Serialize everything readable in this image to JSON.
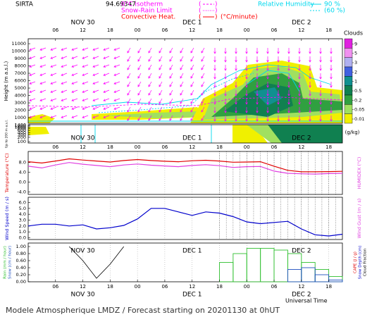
{
  "header": {
    "station": "SIRTA",
    "coordinate": "94.69347",
    "legend": [
      {
        "name": "0°C isotherm",
        "color": "#ff00ff"
      },
      {
        "name": "Snow-Rain Limit",
        "color": "#ff00ff"
      },
      {
        "name": "Convective Heat.",
        "color": "#ff0000"
      }
    ],
    "legend_unit": "(°C/minute)",
    "humidity": {
      "name": "Relative Humidity",
      "levels": [
        "90 %",
        "(60 %)"
      ],
      "color": "#00d8ee"
    }
  },
  "dates": [
    "NOV 30",
    "DEC 1",
    "DEC 2"
  ],
  "chart_data": [
    {
      "type": "contour",
      "ylabel": "Height (m a.s.l.)",
      "inset_ylabel": "Up to 200 m a.s.l.",
      "xlim": [
        0,
        69
      ],
      "xticks": [
        {
          "value": 6,
          "label": "06"
        },
        12,
        18,
        {
          "value": 24,
          "label": "00"
        },
        {
          "value": 30,
          "label": "06"
        },
        {
          "value": 36,
          "label": "12"
        },
        {
          "value": 42,
          "label": "18"
        },
        {
          "value": 48,
          "label": "00"
        },
        {
          "value": 54,
          "label": "06"
        },
        {
          "value": 60,
          "label": "12"
        },
        {
          "value": 66,
          "label": "18"
        }
      ],
      "ylim": [
        240,
        11670
      ],
      "yticks": [
        1000,
        2000,
        3000,
        4000,
        5000,
        6000,
        7000,
        8000,
        9000,
        10000,
        11000
      ],
      "inset_ylim": [
        80,
        1500
      ],
      "inset_log": true,
      "inset_yticks": [
        1400,
        1200,
        1000,
        800,
        600,
        400,
        300,
        200,
        100
      ],
      "colorbar": {
        "title": "Clouds",
        "unit": "(g/kg)",
        "levels": [
          9,
          5,
          3,
          2,
          1,
          0.5,
          0.2,
          0.05,
          0.01
        ],
        "colors": [
          "#e020e0",
          "#f090f0",
          "#b0b0f0",
          "#4060e0",
          "#109090",
          "#108050",
          "#30a040",
          "#a0e060",
          "#f0f000"
        ]
      }
    },
    {
      "type": "line",
      "xlim": [
        0,
        69
      ],
      "xticks": [
        {
          "value": 6,
          "label": "06"
        },
        12,
        18,
        {
          "value": 24,
          "label": "00"
        },
        {
          "value": 30,
          "label": "06"
        },
        {
          "value": 36,
          "label": "12"
        },
        {
          "value": 42,
          "label": "18"
        },
        {
          "value": 48,
          "label": "00"
        },
        {
          "value": 54,
          "label": "06"
        },
        {
          "value": 60,
          "label": "12"
        },
        {
          "value": 66,
          "label": "18"
        }
      ],
      "x": [
        0,
        3,
        6,
        9,
        12,
        15,
        18,
        21,
        24,
        27,
        30,
        33,
        36,
        39,
        42,
        45,
        48,
        51,
        54,
        57,
        60,
        63,
        66,
        69
      ],
      "ylim": [
        -5,
        12.5
      ],
      "yticks": [
        {
          "value": 8,
          "label": "8.0"
        },
        {
          "value": 4,
          "label": "4.0"
        },
        {
          "value": 0,
          "label": "0.0"
        },
        {
          "value": -4,
          "label": "-4.0"
        }
      ],
      "series": [
        {
          "name": "Temperature (°C)",
          "color": "#e00000",
          "values": [
            8.3,
            7.8,
            8.6,
            9.5,
            9.0,
            8.6,
            8.2,
            8.8,
            9.2,
            8.8,
            8.5,
            8.3,
            8.7,
            8.9,
            8.6,
            8.1,
            8.2,
            8.3,
            6.5,
            4.8,
            4.2,
            4.2,
            4.3,
            4.4
          ]
        },
        {
          "name": "HUMIDEX (°C)",
          "color": "#e040e0",
          "values": [
            6.5,
            5.8,
            7.0,
            8.0,
            7.3,
            6.8,
            6.3,
            7.0,
            7.4,
            6.9,
            6.6,
            6.3,
            6.8,
            7.1,
            6.7,
            6.0,
            6.3,
            6.4,
            4.5,
            3.6,
            3.4,
            3.3,
            3.5,
            3.6
          ]
        }
      ]
    },
    {
      "type": "line",
      "xlim": [
        0,
        69
      ],
      "x": [
        0,
        3,
        6,
        9,
        12,
        15,
        18,
        21,
        24,
        27,
        30,
        33,
        36,
        39,
        42,
        45,
        48,
        51,
        54,
        57,
        60,
        63,
        66,
        69
      ],
      "ylim": [
        -0.3,
        6.9
      ],
      "yticks": [
        {
          "value": 0,
          "label": "0.0"
        },
        {
          "value": 1,
          "label": "1.0"
        },
        {
          "value": 2,
          "label": "2.0"
        },
        {
          "value": 3,
          "label": "3.0"
        },
        {
          "value": 4,
          "label": "4.0"
        },
        {
          "value": 5,
          "label": "5.0"
        },
        {
          "value": 6,
          "label": "6.0"
        }
      ],
      "y2label": "Wind Gust (m / s)",
      "y2color": "#e040e0",
      "series": [
        {
          "name": "Wind Speed (m / s)",
          "color": "#0000cc",
          "values": [
            2.0,
            2.3,
            2.3,
            2.0,
            2.2,
            1.5,
            1.7,
            2.1,
            3.2,
            5.0,
            5.0,
            4.4,
            3.8,
            4.4,
            4.2,
            3.6,
            2.7,
            2.4,
            2.6,
            2.8,
            1.5,
            0.5,
            0.3,
            0.6
          ]
        }
      ]
    },
    {
      "type": "bar",
      "xlim": [
        0,
        69
      ],
      "xticks": [
        {
          "value": 6,
          "label": "06"
        },
        12,
        18,
        {
          "value": 24,
          "label": "00"
        },
        {
          "value": 30,
          "label": "06"
        },
        {
          "value": 36,
          "label": "12"
        },
        {
          "value": 42,
          "label": "18"
        },
        {
          "value": 48,
          "label": "00"
        },
        {
          "value": 54,
          "label": "06"
        },
        {
          "value": 60,
          "label": "12"
        },
        {
          "value": 66,
          "label": "18"
        }
      ],
      "x": [
        0,
        3,
        6,
        9,
        12,
        15,
        18,
        21,
        24,
        27,
        30,
        33,
        36,
        39,
        42,
        45,
        48,
        51,
        54,
        57,
        60,
        63,
        66
      ],
      "ylim": [
        0,
        1.1
      ],
      "yticks": [
        {
          "value": 0,
          "label": "0.00"
        },
        {
          "value": 0.2,
          "label": "0.20"
        },
        {
          "value": 0.4,
          "label": "0.40"
        },
        {
          "value": 0.6,
          "label": "0.60"
        },
        {
          "value": 0.8,
          "label": "0.80"
        },
        {
          "value": 1,
          "label": "1.00"
        }
      ],
      "y2labels": [
        {
          "name": "CAPE (J / g)",
          "color": "#e00000"
        },
        {
          "name": "Snow Depth (cm)",
          "color": "#0000cc"
        },
        {
          "name": "Cloud Fraction",
          "color": "#000000"
        }
      ],
      "series": [
        {
          "name": "Rain (mm / hour)",
          "color": "#30c030",
          "values": [
            0,
            0,
            0,
            0,
            0,
            0,
            0,
            0,
            0,
            0,
            0,
            0,
            0,
            0,
            0.55,
            0.8,
            0.95,
            0.95,
            0.9,
            0.8,
            0.55,
            0.35,
            0.15
          ]
        },
        {
          "name": "Snow (cm / hour)",
          "color": "#2050c0",
          "values": [
            0,
            0,
            0,
            0,
            0,
            0,
            0,
            0,
            0,
            0,
            0,
            0,
            0,
            0,
            0,
            0,
            0,
            0,
            0,
            0.35,
            0.4,
            0.2,
            0.05
          ]
        },
        {
          "name": "Cloud Fraction",
          "color": "#000000",
          "kind": "line",
          "values": [
            null,
            null,
            null,
            1.0,
            0.6,
            0.1,
            0.5,
            1.0,
            null,
            null,
            null,
            null,
            null,
            null,
            null,
            null,
            null,
            null,
            null,
            null,
            null,
            null,
            null
          ]
        }
      ]
    }
  ],
  "footer": {
    "xlabel": "Universal Time",
    "caption": "Modele Atmospherique LMDZ / Forecast starting on 20201130 at 0hUT"
  }
}
